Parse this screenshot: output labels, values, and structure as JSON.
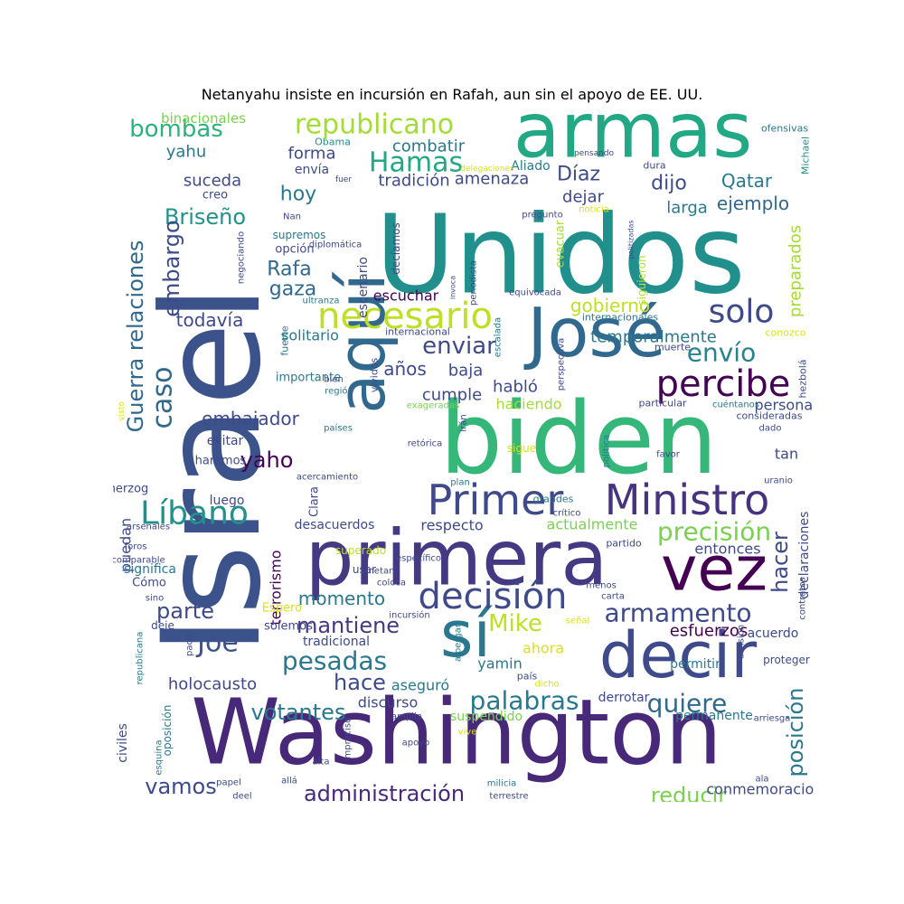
{
  "title": "Netanyahu insiste en incursión en Rafah, aun sin el apoyo de EE. UU.",
  "words": [
    {
      "t": "Israel",
      "c": "#3b528b"
    },
    {
      "t": "Unidos",
      "c": "#21908d"
    },
    {
      "t": "biden",
      "c": "#35b779"
    },
    {
      "t": "Washington",
      "c": "#482878"
    },
    {
      "t": "armas",
      "c": "#22a884"
    },
    {
      "t": "primera",
      "c": "#443983"
    },
    {
      "t": "José",
      "c": "#31688e"
    },
    {
      "t": "aquí",
      "c": "#31688e"
    },
    {
      "t": "decir",
      "c": "#3e4a89"
    },
    {
      "t": "vez",
      "c": "#440154"
    },
    {
      "t": "sí",
      "c": "#2a788e"
    },
    {
      "t": "Ministro",
      "c": "#46327e"
    },
    {
      "t": "Primer",
      "c": "#3e4a89"
    },
    {
      "t": "decisión",
      "c": "#3e4a89"
    },
    {
      "t": "necesario",
      "c": "#bddf26"
    },
    {
      "t": "percibe",
      "c": "#440154"
    },
    {
      "t": "republicano",
      "c": "#a5db36"
    },
    {
      "t": "Hamas",
      "c": "#22a884"
    },
    {
      "t": "Líbano",
      "c": "#21918c"
    },
    {
      "t": "solo",
      "c": "#3e4a89"
    },
    {
      "t": "caso",
      "c": "#31688e"
    },
    {
      "t": "precisión",
      "c": "#7ad151"
    },
    {
      "t": "palabras",
      "c": "#2a788e"
    },
    {
      "t": "quiere",
      "c": "#31688e"
    },
    {
      "t": "armamento",
      "c": "#3e4a89"
    },
    {
      "t": "mantiene",
      "c": "#443983"
    },
    {
      "t": "pesadas",
      "c": "#2a788e"
    },
    {
      "t": "envío",
      "c": "#26828e"
    },
    {
      "t": "enviar",
      "c": "#3e4a89"
    },
    {
      "t": "administración",
      "c": "#482878"
    },
    {
      "t": "Joe",
      "c": "#3b528b"
    },
    {
      "t": "Mike",
      "c": "#bddf26"
    },
    {
      "t": "bombas",
      "c": "#2db27d"
    },
    {
      "t": "Briseño",
      "c": "#21918c"
    },
    {
      "t": "Guerra relaciones",
      "c": "#31688e"
    },
    {
      "t": "embargo",
      "c": "#3e4a89"
    },
    {
      "t": "parte",
      "c": "#3e4a89"
    },
    {
      "t": "hacer",
      "c": "#3e4a89"
    },
    {
      "t": "posición",
      "c": "#2a788e"
    },
    {
      "t": "hace",
      "c": "#3e4a89"
    },
    {
      "t": "votantes",
      "c": "#2a788e"
    },
    {
      "t": "reducir",
      "c": "#7ad151"
    },
    {
      "t": "vamos",
      "c": "#3e4a89"
    },
    {
      "t": "Rafa",
      "c": "#31688e"
    },
    {
      "t": "gaza",
      "c": "#31688e"
    },
    {
      "t": "hoy",
      "c": "#2a788e"
    },
    {
      "t": "dijo",
      "c": "#3e4a89"
    },
    {
      "t": "Díaz",
      "c": "#3e4a89"
    },
    {
      "t": "Qatar",
      "c": "#2a788e"
    },
    {
      "t": "gobierno",
      "c": "#bddf26"
    },
    {
      "t": "todavía",
      "c": "#3e4a89"
    },
    {
      "t": "momento",
      "c": "#2a788e"
    },
    {
      "t": "embajador",
      "c": "#3e4a89"
    },
    {
      "t": "yaho",
      "c": "#440154"
    },
    {
      "t": "años",
      "c": "#3e4a89"
    },
    {
      "t": "ejemplo",
      "c": "#31688e"
    },
    {
      "t": "baja",
      "c": "#3e4a89"
    },
    {
      "t": "yahu",
      "c": "#2a788e"
    },
    {
      "t": "binacionales",
      "c": "#7ad151"
    },
    {
      "t": "combatir",
      "c": "#2a788e"
    },
    {
      "t": "tradición",
      "c": "#3e4a89"
    },
    {
      "t": "amenaza",
      "c": "#3e4a89"
    },
    {
      "t": "suceda",
      "c": "#3e4a89"
    },
    {
      "t": "forma",
      "c": "#3e4a89"
    },
    {
      "t": "dejar",
      "c": "#3e4a89"
    },
    {
      "t": "larga",
      "c": "#2a788e"
    },
    {
      "t": "preparados",
      "c": "#a5db36"
    },
    {
      "t": "temporalmente",
      "c": "#2a788e"
    },
    {
      "t": "habló",
      "c": "#3e4a89"
    },
    {
      "t": "cumple",
      "c": "#3e4a89"
    },
    {
      "t": "haciendo",
      "c": "#a5db36"
    },
    {
      "t": "solitario",
      "c": "#2a788e"
    },
    {
      "t": "escuchar",
      "c": "#440154"
    },
    {
      "t": "holocausto",
      "c": "#3e4a89"
    },
    {
      "t": "aseguró",
      "c": "#2a788e"
    },
    {
      "t": "esfuerzos",
      "c": "#440154"
    },
    {
      "t": "respecto",
      "c": "#3e4a89"
    },
    {
      "t": "actualmente",
      "c": "#7ad151"
    },
    {
      "t": "entonces",
      "c": "#3e4a89"
    },
    {
      "t": "declaraciones",
      "c": "#3e4a89"
    },
    {
      "t": "conmemoraciones",
      "c": "#3e4a89"
    },
    {
      "t": "personas",
      "c": "#3e4a89"
    },
    {
      "t": "tan",
      "c": "#3e4a89"
    },
    {
      "t": "ahora",
      "c": "#d8e219"
    },
    {
      "t": "yamin",
      "c": "#2a788e"
    },
    {
      "t": "discurso",
      "c": "#3e4a89"
    },
    {
      "t": "puedan",
      "c": "#3e4a89"
    },
    {
      "t": "terrorismo",
      "c": "#440154"
    },
    {
      "t": "suspendido",
      "c": "#7ad151"
    },
    {
      "t": "permanente",
      "c": "#2a788e"
    },
    {
      "t": "derrotar",
      "c": "#3e4a89"
    },
    {
      "t": "evitar",
      "c": "#3e4a89"
    },
    {
      "t": "luego",
      "c": "#3e4a89"
    },
    {
      "t": "desacuerdos",
      "c": "#3e4a89"
    },
    {
      "t": "tradicional",
      "c": "#3e4a89"
    },
    {
      "t": "civiles",
      "c": "#3e4a89"
    },
    {
      "t": "acuerdo",
      "c": "#3e4a89"
    },
    {
      "t": "permitir",
      "c": "#2a788e"
    },
    {
      "t": "proteger",
      "c": "#3e4a89"
    },
    {
      "t": "Aliado",
      "c": "#2a788e"
    },
    {
      "t": "envía",
      "c": "#3e4a89"
    },
    {
      "t": "creo",
      "c": "#3e4a89"
    },
    {
      "t": "escenario",
      "c": "#3e4a89"
    },
    {
      "t": "decíamos",
      "c": "#3e4a89"
    },
    {
      "t": "evacuar",
      "c": "#a5db36"
    },
    {
      "t": "siguieron",
      "c": "#bddf26"
    },
    {
      "t": "supremos",
      "c": "#2a788e"
    },
    {
      "t": "opción",
      "c": "#3e4a89"
    },
    {
      "t": "importante",
      "c": "#2a788e"
    },
    {
      "t": "haremos",
      "c": "#3e4a89"
    },
    {
      "t": "significa",
      "c": "#2a788e"
    },
    {
      "t": "Cómo",
      "c": "#3e4a89"
    },
    {
      "t": "Espero",
      "c": "#d8e219"
    },
    {
      "t": "solemos",
      "c": "#3e4a89"
    },
    {
      "t": "superado",
      "c": "#bddf26"
    },
    {
      "t": "usar",
      "c": "#3e4a89"
    },
    {
      "t": "herzog",
      "c": "#3e4a89"
    },
    {
      "t": "Clara",
      "c": "#3e4a89"
    },
    {
      "t": "sigue",
      "c": "#d8e219"
    },
    {
      "t": "grandes",
      "c": "#2a788e"
    },
    {
      "t": "país",
      "c": "#3e4a89"
    },
    {
      "t": "partido",
      "c": "#3e4a89"
    },
    {
      "t": "ofensivas",
      "c": "#2a788e"
    },
    {
      "t": "dura",
      "c": "#3e4a89"
    },
    {
      "t": "Michael",
      "c": "#21918c"
    },
    {
      "t": "Obama",
      "c": "#21918c"
    },
    {
      "t": "Nan",
      "c": "#3e4a89"
    },
    {
      "t": "diplomática",
      "c": "#3e4a89"
    },
    {
      "t": "negociando",
      "c": "#3e4a89"
    },
    {
      "t": "ultranza",
      "c": "#2a788e"
    },
    {
      "t": "fuerte",
      "c": "#2a788e"
    },
    {
      "t": "vividos",
      "c": "#3e4a89"
    },
    {
      "t": "internacional",
      "c": "#3e4a89"
    },
    {
      "t": "internacionales",
      "c": "#2a788e"
    },
    {
      "t": "conozco",
      "c": "#d8e219"
    },
    {
      "t": "muerte",
      "c": "#3e4a89"
    },
    {
      "t": "hezbolá",
      "c": "#3e4a89"
    },
    {
      "t": "particular",
      "c": "#3e4a89"
    },
    {
      "t": "cuéntanos",
      "c": "#2a788e"
    },
    {
      "t": "consideradas",
      "c": "#3e4a89"
    },
    {
      "t": "dado",
      "c": "#3e4a89"
    },
    {
      "t": "favor",
      "c": "#3e4a89"
    },
    {
      "t": "uranio",
      "c": "#3e4a89"
    },
    {
      "t": "región",
      "c": "#2a788e"
    },
    {
      "t": "bien",
      "c": "#3e4a89"
    },
    {
      "t": "exageradas",
      "c": "#7ad151"
    },
    {
      "t": "países",
      "c": "#2a788e"
    },
    {
      "t": "retórica",
      "c": "#3e4a89"
    },
    {
      "t": "acercamiento",
      "c": "#3e4a89"
    },
    {
      "t": "plan",
      "c": "#2a788e"
    },
    {
      "t": "crítico",
      "c": "#3e4a89"
    },
    {
      "t": "arsenales",
      "c": "#3e4a89"
    },
    {
      "t": "foros",
      "c": "#3e4a89"
    },
    {
      "t": "comparable",
      "c": "#3e4a89"
    },
    {
      "t": "netan",
      "c": "#3e4a89"
    },
    {
      "t": "coloca",
      "c": "#3e4a89"
    },
    {
      "t": "específico",
      "c": "#3e4a89"
    },
    {
      "t": "menos",
      "c": "#3e4a89"
    },
    {
      "t": "carta",
      "c": "#3e4a89"
    },
    {
      "t": "sino",
      "c": "#3e4a89"
    },
    {
      "t": "deje",
      "c": "#3e4a89"
    },
    {
      "t": "incursión",
      "c": "#3e4a89"
    },
    {
      "t": "señal",
      "c": "#d8e219"
    },
    {
      "t": "contratos",
      "c": "#3e4a89"
    },
    {
      "t": "división",
      "c": "#3e4a89"
    },
    {
      "t": "republicana",
      "c": "#2a788e"
    },
    {
      "t": "pacto",
      "c": "#3e4a89"
    },
    {
      "t": "amplia",
      "c": "#3e4a89"
    },
    {
      "t": "vive",
      "c": "#d8e219"
    },
    {
      "t": "arriesga",
      "c": "#3e4a89"
    },
    {
      "t": "apoyo",
      "c": "#3e4a89"
    },
    {
      "t": "alta",
      "c": "#3e4a89"
    },
    {
      "t": "papel",
      "c": "#3e4a89"
    },
    {
      "t": "allá",
      "c": "#3e4a89"
    },
    {
      "t": "milicia",
      "c": "#2a788e"
    },
    {
      "t": "ala",
      "c": "#3e4a89"
    },
    {
      "t": "deel",
      "c": "#3e4a89"
    },
    {
      "t": "terrestre",
      "c": "#3e4a89"
    },
    {
      "t": "oposición",
      "c": "#2a788e"
    },
    {
      "t": "esquina",
      "c": "#2a788e"
    },
    {
      "t": "impreciso",
      "c": "#3e4a89"
    },
    {
      "t": "albergan",
      "c": "#2a788e"
    },
    {
      "t": "Irán",
      "c": "#3e4a89"
    },
    {
      "t": "política",
      "c": "#2a788e"
    },
    {
      "t": "perspectiva",
      "c": "#3e4a89"
    },
    {
      "t": "escalada",
      "c": "#2a788e"
    },
    {
      "t": "periodista",
      "c": "#3e4a89"
    },
    {
      "t": "invoca",
      "c": "#3e4a89"
    },
    {
      "t": "equivocada",
      "c": "#3e4a89"
    },
    {
      "t": "politizadas",
      "c": "#3e4a89"
    },
    {
      "t": "noticia",
      "c": "#d8e219"
    },
    {
      "t": "pregunto",
      "c": "#3e4a89"
    },
    {
      "t": "delegaciones",
      "c": "#d8e219"
    },
    {
      "t": "pensando",
      "c": "#3e4a89"
    },
    {
      "t": "fuer",
      "c": "#3e4a89"
    },
    {
      "t": "visto",
      "c": "#d8e219"
    },
    {
      "t": "dicho",
      "c": "#d8e219"
    },
    {
      "t": "protección",
      "c": "#d8e219"
    },
    {
      "t": "posibilidad",
      "c": "#2a788e"
    },
    {
      "t": "all",
      "c": "#3e4a89"
    }
  ]
}
